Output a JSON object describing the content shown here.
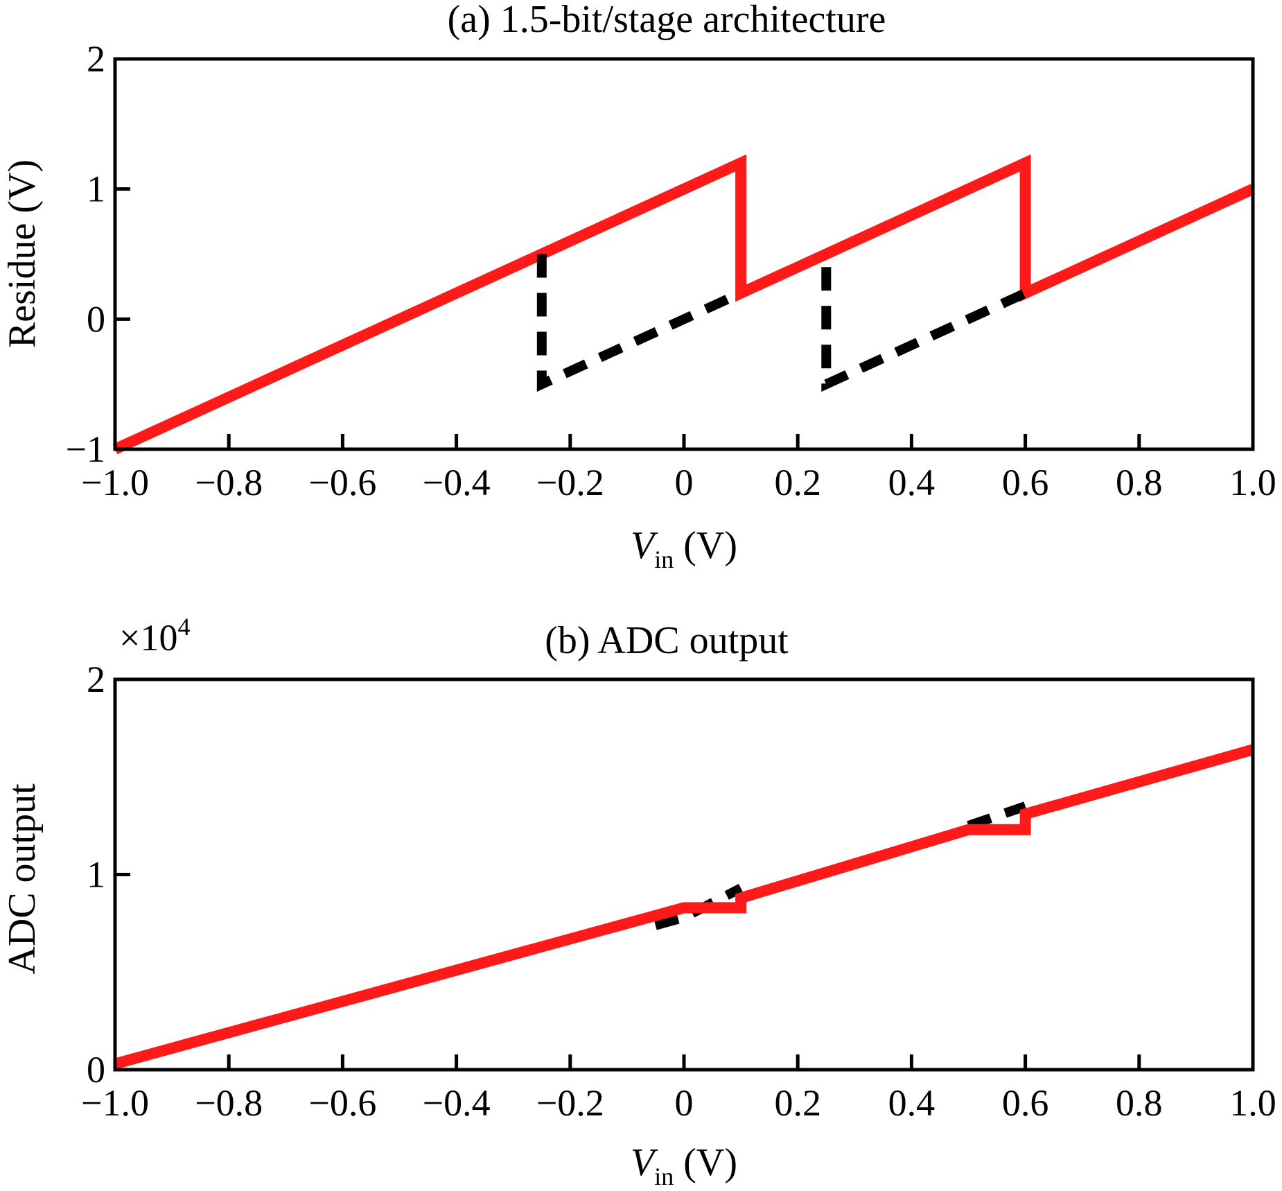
{
  "chart_data": [
    {
      "type": "line",
      "title": "(a) 1.5-bit/stage architecture",
      "xlabel_main": "V",
      "xlabel_sub": "in",
      "xlabel_unit": " (V)",
      "ylabel": "Residue (V)",
      "xlim": [
        -1.0,
        1.0
      ],
      "ylim": [
        -1,
        2
      ],
      "x_ticks": [
        -1.0,
        -0.8,
        -0.6,
        -0.4,
        -0.2,
        0,
        0.2,
        0.4,
        0.6,
        0.8,
        1.0
      ],
      "x_tick_labels": [
        "−1.0",
        "−0.8",
        "−0.6",
        "−0.4",
        "−0.2",
        "0",
        "0.2",
        "0.4",
        "0.6",
        "0.8",
        "1.0"
      ],
      "y_ticks": [
        -1,
        0,
        1,
        2
      ],
      "y_tick_labels": [
        "−1",
        "0",
        "1",
        "2"
      ],
      "grid": false,
      "series": [
        {
          "color": "#ff1a1a",
          "style": "solid",
          "points": [
            [
              -1.0,
              -1.0
            ],
            [
              0.1,
              1.2
            ],
            [
              0.1,
              0.2
            ],
            [
              0.6,
              1.2
            ],
            [
              0.6,
              0.2
            ],
            [
              1.0,
              1.0
            ]
          ]
        },
        {
          "color": "#000000",
          "style": "dashed",
          "segments": [
            [
              [
                -0.25,
                0.5
              ],
              [
                -0.25,
                -0.5
              ],
              [
                0.1,
                0.2
              ]
            ],
            [
              [
                0.25,
                0.4
              ],
              [
                0.25,
                -0.5
              ],
              [
                0.6,
                0.2
              ]
            ]
          ]
        }
      ]
    },
    {
      "type": "line",
      "title": "(b) ADC output",
      "multiplier_base": "×10",
      "multiplier_exp": "4",
      "xlabel_main": "V",
      "xlabel_sub": "in",
      "xlabel_unit": " (V)",
      "ylabel": "ADC output",
      "xlim": [
        -1.0,
        1.0
      ],
      "ylim": [
        0,
        2
      ],
      "x_ticks": [
        -1.0,
        -0.8,
        -0.6,
        -0.4,
        -0.2,
        0,
        0.2,
        0.4,
        0.6,
        0.8,
        1.0
      ],
      "x_tick_labels": [
        "−1.0",
        "−0.8",
        "−0.6",
        "−0.4",
        "−0.2",
        "0",
        "0.2",
        "0.4",
        "0.6",
        "0.8",
        "1.0"
      ],
      "y_ticks": [
        0,
        1,
        2
      ],
      "y_tick_labels": [
        "0",
        "1",
        "2"
      ],
      "grid": false,
      "series": [
        {
          "color": "#000000",
          "style": "dashed",
          "segments": [
            [
              [
                -0.05,
                0.74
              ],
              [
                0.0,
                0.78
              ],
              [
                0.1,
                0.93
              ]
            ],
            [
              [
                0.5,
                1.25
              ],
              [
                0.6,
                1.35
              ]
            ]
          ]
        },
        {
          "color": "#ff1a1a",
          "style": "solid",
          "points": [
            [
              -1.0,
              0.03
            ],
            [
              0.0,
              0.83
            ],
            [
              0.1,
              0.83
            ],
            [
              0.1,
              0.88
            ],
            [
              0.5,
              1.23
            ],
            [
              0.6,
              1.23
            ],
            [
              0.6,
              1.31
            ],
            [
              1.0,
              1.64
            ]
          ]
        }
      ]
    }
  ]
}
